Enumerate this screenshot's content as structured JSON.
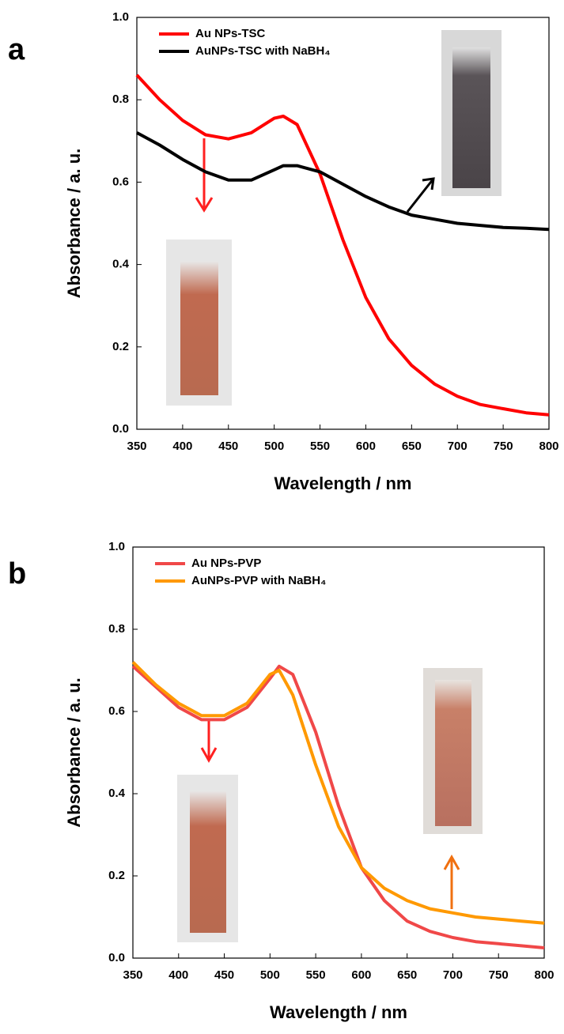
{
  "chart_data": [
    {
      "type": "line",
      "panel": "a",
      "xlabel": "Wavelength / nm",
      "ylabel": "Absorbance / a. u.",
      "x": [
        350,
        375,
        400,
        425,
        450,
        475,
        500,
        510,
        525,
        550,
        575,
        600,
        625,
        650,
        675,
        700,
        725,
        750,
        775,
        800
      ],
      "series": [
        {
          "name": "Au NPs-TSC",
          "color": "#ff0000",
          "values": [
            0.86,
            0.8,
            0.75,
            0.715,
            0.705,
            0.72,
            0.755,
            0.76,
            0.74,
            0.62,
            0.46,
            0.32,
            0.22,
            0.155,
            0.11,
            0.08,
            0.06,
            0.05,
            0.04,
            0.035
          ]
        },
        {
          "name": "AuNPs-TSC with NaBH₄",
          "color": "#000000",
          "values": [
            0.72,
            0.69,
            0.655,
            0.625,
            0.605,
            0.605,
            0.63,
            0.64,
            0.64,
            0.625,
            0.595,
            0.565,
            0.54,
            0.52,
            0.51,
            0.5,
            0.495,
            0.49,
            0.488,
            0.485
          ]
        }
      ],
      "xlim": [
        350,
        800
      ],
      "xticks": [
        350,
        400,
        450,
        500,
        550,
        600,
        650,
        700,
        750,
        800
      ],
      "ylim": [
        0,
        1
      ],
      "yticks": [
        {
          "value": 0,
          "label": "0.0"
        },
        0.2,
        0.4,
        0.6,
        0.8,
        {
          "value": 1,
          "label": "1.0"
        }
      ]
    },
    {
      "type": "line",
      "panel": "b",
      "xlabel": "Wavelength / nm",
      "ylabel": "Absorbance / a. u.",
      "x": [
        350,
        375,
        400,
        425,
        450,
        475,
        500,
        510,
        525,
        550,
        575,
        600,
        625,
        650,
        675,
        700,
        725,
        750,
        775,
        800
      ],
      "series": [
        {
          "name": "Au NPs-PVP",
          "color": "#f04848",
          "values": [
            0.71,
            0.66,
            0.61,
            0.58,
            0.58,
            0.61,
            0.68,
            0.71,
            0.69,
            0.55,
            0.37,
            0.22,
            0.14,
            0.09,
            0.065,
            0.05,
            0.04,
            0.035,
            0.03,
            0.025
          ]
        },
        {
          "name": "AuNPs-PVP with NaBH₄",
          "color": "#ff9900",
          "values": [
            0.72,
            0.665,
            0.62,
            0.59,
            0.59,
            0.62,
            0.69,
            0.7,
            0.64,
            0.47,
            0.32,
            0.22,
            0.17,
            0.14,
            0.12,
            0.11,
            0.1,
            0.095,
            0.09,
            0.085
          ]
        }
      ],
      "xlim": [
        350,
        800
      ],
      "xticks": [
        350,
        400,
        450,
        500,
        550,
        600,
        650,
        700,
        750,
        800
      ],
      "ylim": [
        0,
        1
      ],
      "yticks": [
        {
          "value": 0,
          "label": "0.0"
        },
        0.2,
        0.4,
        0.6,
        0.8,
        {
          "value": 1,
          "label": "1.0"
        }
      ]
    }
  ]
}
